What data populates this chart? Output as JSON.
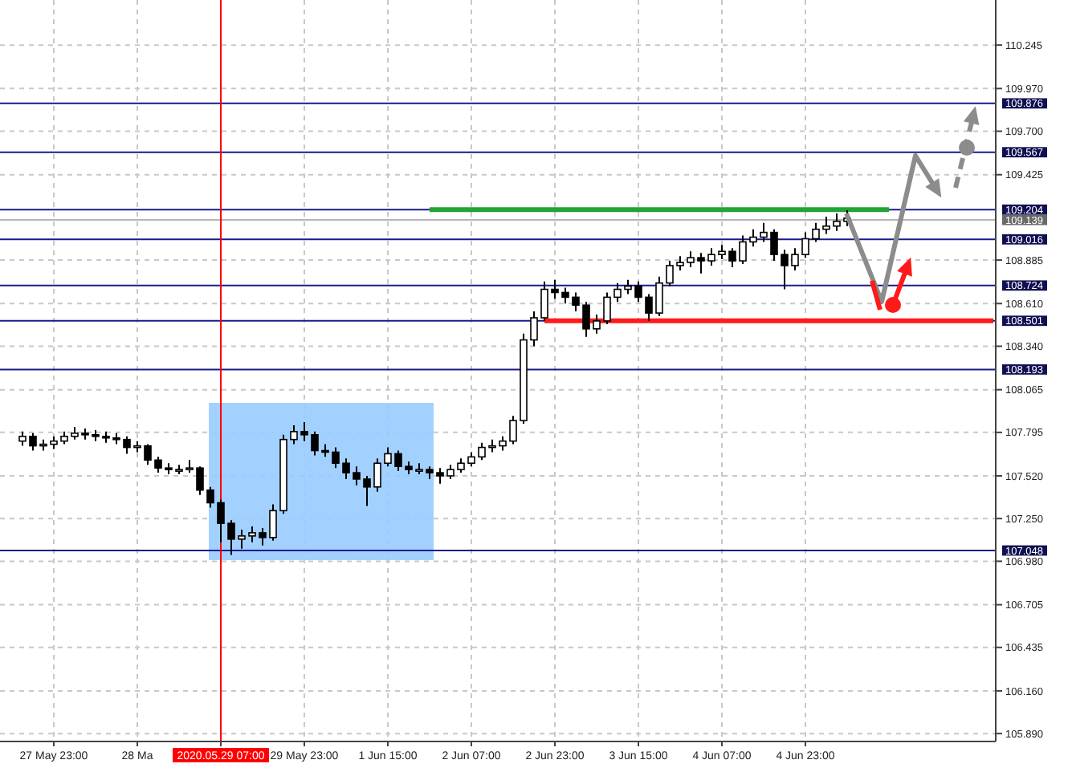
{
  "chart_data": {
    "type": "candlestick",
    "categories": [
      null,
      null,
      null,
      "27 May 23:00",
      null,
      null,
      null,
      null,
      null,
      null,
      null,
      "28 Ma",
      null,
      null,
      null,
      null,
      null,
      null,
      null,
      "2020.05.29 07:00",
      null,
      null,
      null,
      null,
      null,
      null,
      null,
      "29 May 23:00",
      null,
      null,
      null,
      null,
      null,
      null,
      null,
      "1 Jun 15:00",
      null,
      null,
      null,
      null,
      null,
      null,
      null,
      "2 Jun 07:00",
      null,
      null,
      null,
      null,
      null,
      null,
      null,
      "2 Jun 23:00",
      null,
      null,
      null,
      null,
      null,
      null,
      null,
      "3 Jun 15:00",
      null,
      null,
      null,
      null,
      null,
      null,
      null,
      "4 Jun 07:00",
      null,
      null,
      null,
      null,
      null,
      null,
      null,
      "4 Jun 23:00",
      null,
      null,
      null,
      null,
      null,
      null,
      null,
      null,
      null,
      null,
      null,
      null,
      null,
      null,
      null,
      null,
      null,
      null
    ],
    "ohlc": [
      [
        107.74,
        107.8,
        107.71,
        107.77
      ],
      [
        107.77,
        107.79,
        107.68,
        107.71
      ],
      [
        107.71,
        107.75,
        107.68,
        107.72
      ],
      [
        107.72,
        107.77,
        107.69,
        107.74
      ],
      [
        107.74,
        107.8,
        107.72,
        107.77
      ],
      [
        107.77,
        107.83,
        107.75,
        107.79
      ],
      [
        107.79,
        107.82,
        107.75,
        107.78
      ],
      [
        107.78,
        107.81,
        107.74,
        107.77
      ],
      [
        107.77,
        107.8,
        107.73,
        107.76
      ],
      [
        107.76,
        107.79,
        107.72,
        107.75
      ],
      [
        107.75,
        107.77,
        107.66,
        107.7
      ],
      [
        107.7,
        107.74,
        107.67,
        107.71
      ],
      [
        107.71,
        107.72,
        107.59,
        107.62
      ],
      [
        107.62,
        107.64,
        107.54,
        107.57
      ],
      [
        107.57,
        107.6,
        107.53,
        107.56
      ],
      [
        107.56,
        107.59,
        107.53,
        107.56
      ],
      [
        107.56,
        107.62,
        107.54,
        107.57
      ],
      [
        107.57,
        107.58,
        107.4,
        107.43
      ],
      [
        107.43,
        107.45,
        107.32,
        107.35
      ],
      [
        107.35,
        107.37,
        107.1,
        107.22
      ],
      [
        107.22,
        107.24,
        107.02,
        107.12
      ],
      [
        107.12,
        107.18,
        107.06,
        107.14
      ],
      [
        107.14,
        107.2,
        107.1,
        107.16
      ],
      [
        107.16,
        107.19,
        107.08,
        107.13
      ],
      [
        107.13,
        107.34,
        107.11,
        107.3
      ],
      [
        107.3,
        107.78,
        107.28,
        107.75
      ],
      [
        107.75,
        107.84,
        107.72,
        107.8
      ],
      [
        107.8,
        107.86,
        107.74,
        107.78
      ],
      [
        107.78,
        107.8,
        107.65,
        107.68
      ],
      [
        107.68,
        107.72,
        107.64,
        107.67
      ],
      [
        107.67,
        107.7,
        107.57,
        107.6
      ],
      [
        107.6,
        107.63,
        107.5,
        107.54
      ],
      [
        107.54,
        107.58,
        107.46,
        107.5
      ],
      [
        107.5,
        107.52,
        107.33,
        107.45
      ],
      [
        107.45,
        107.63,
        107.42,
        107.6
      ],
      [
        107.6,
        107.7,
        107.58,
        107.66
      ],
      [
        107.66,
        107.68,
        107.55,
        107.58
      ],
      [
        107.58,
        107.61,
        107.53,
        107.56
      ],
      [
        107.56,
        107.6,
        107.53,
        107.56
      ],
      [
        107.56,
        107.58,
        107.5,
        107.54
      ],
      [
        107.54,
        107.57,
        107.47,
        107.52
      ],
      [
        107.52,
        107.59,
        107.5,
        107.56
      ],
      [
        107.56,
        107.63,
        107.54,
        107.6
      ],
      [
        107.6,
        107.67,
        107.58,
        107.64
      ],
      [
        107.64,
        107.73,
        107.62,
        107.7
      ],
      [
        107.7,
        107.75,
        107.67,
        107.71
      ],
      [
        107.71,
        107.77,
        107.68,
        107.74
      ],
      [
        107.74,
        107.9,
        107.72,
        107.87
      ],
      [
        107.87,
        108.42,
        107.85,
        108.38
      ],
      [
        108.38,
        108.56,
        108.34,
        108.52
      ],
      [
        108.52,
        108.75,
        108.5,
        108.7
      ],
      [
        108.7,
        108.76,
        108.64,
        108.68
      ],
      [
        108.68,
        108.71,
        108.61,
        108.65
      ],
      [
        108.65,
        108.68,
        108.56,
        108.6
      ],
      [
        108.6,
        108.62,
        108.4,
        108.45
      ],
      [
        108.45,
        108.54,
        108.42,
        108.5
      ],
      [
        108.5,
        108.68,
        108.48,
        108.65
      ],
      [
        108.65,
        108.74,
        108.62,
        108.7
      ],
      [
        108.7,
        108.76,
        108.67,
        108.72
      ],
      [
        108.72,
        108.75,
        108.62,
        108.65
      ],
      [
        108.65,
        108.67,
        108.5,
        108.55
      ],
      [
        108.55,
        108.78,
        108.53,
        108.74
      ],
      [
        108.74,
        108.88,
        108.72,
        108.85
      ],
      [
        108.85,
        108.91,
        108.82,
        108.87
      ],
      [
        108.87,
        108.94,
        108.84,
        108.9
      ],
      [
        108.9,
        108.93,
        108.8,
        108.88
      ],
      [
        108.88,
        108.96,
        108.85,
        108.92
      ],
      [
        108.92,
        108.98,
        108.89,
        108.94
      ],
      [
        108.94,
        108.96,
        108.84,
        108.88
      ],
      [
        108.88,
        109.04,
        108.86,
        109.0
      ],
      [
        109.0,
        109.08,
        108.97,
        109.03
      ],
      [
        109.03,
        109.12,
        109.0,
        109.06
      ],
      [
        109.06,
        109.08,
        108.88,
        108.92
      ],
      [
        108.92,
        108.95,
        108.7,
        108.85
      ],
      [
        108.85,
        108.96,
        108.82,
        108.92
      ],
      [
        108.92,
        109.06,
        108.9,
        109.02
      ],
      [
        109.02,
        109.12,
        109.0,
        109.08
      ],
      [
        109.08,
        109.16,
        109.05,
        109.1
      ],
      [
        109.1,
        109.18,
        109.07,
        109.13
      ],
      [
        109.13,
        109.2,
        109.1,
        109.15
      ],
      null,
      null,
      null,
      null,
      null,
      null,
      null,
      null,
      null,
      null,
      null,
      null,
      null,
      null
    ],
    "series": [
      {
        "type": "line",
        "color": "#21a336",
        "values": [
          null,
          null,
          null,
          null,
          null,
          null,
          null,
          null,
          null,
          null,
          null,
          null,
          null,
          null,
          null,
          null,
          null,
          null,
          null,
          null,
          null,
          null,
          null,
          null,
          null,
          null,
          null,
          null,
          null,
          null,
          null,
          null,
          null,
          null,
          null,
          null,
          null,
          null,
          null,
          109.204,
          109.204,
          109.204,
          109.204,
          109.204,
          109.204,
          109.204,
          109.204,
          109.204,
          109.204,
          109.204,
          109.204,
          109.204,
          109.204,
          109.204,
          109.204,
          109.204,
          109.204,
          109.204,
          109.204,
          109.204,
          109.204,
          109.204,
          109.204,
          109.204,
          109.204,
          109.204,
          109.204,
          109.204,
          109.204,
          109.204,
          109.204,
          109.204,
          109.204,
          109.204,
          109.204,
          109.204,
          109.204,
          109.204,
          109.204,
          109.204,
          109.204,
          109.204,
          109.204,
          109.204,
          null,
          null,
          null,
          null,
          null,
          null,
          null,
          null,
          null,
          null
        ]
      },
      {
        "type": "line",
        "color": "#ff1a1a",
        "values": [
          null,
          null,
          null,
          null,
          null,
          null,
          null,
          null,
          null,
          null,
          null,
          null,
          null,
          null,
          null,
          null,
          null,
          null,
          null,
          null,
          null,
          null,
          null,
          null,
          null,
          null,
          null,
          null,
          null,
          null,
          null,
          null,
          null,
          null,
          null,
          null,
          null,
          null,
          null,
          null,
          null,
          null,
          null,
          null,
          null,
          null,
          null,
          null,
          null,
          null,
          108.501,
          108.501,
          108.501,
          108.501,
          108.501,
          108.501,
          108.501,
          108.501,
          108.501,
          108.501,
          108.501,
          108.501,
          108.501,
          108.501,
          108.501,
          108.501,
          108.501,
          108.501,
          108.501,
          108.501,
          108.501,
          108.501,
          108.501,
          108.501,
          108.501,
          108.501,
          108.501,
          108.501,
          108.501,
          108.501,
          108.501,
          108.501,
          108.501,
          108.501,
          108.501,
          108.501,
          108.501,
          108.501,
          108.501,
          108.501,
          108.501,
          108.501,
          108.501,
          108.501
        ]
      }
    ],
    "ylim": [
      105.84,
      110.53
    ],
    "yticks": [
      110.245,
      {
        "value": 109.97,
        "label": "109.970"
      },
      {
        "value": 109.7,
        "label": "109.700"
      },
      109.425,
      108.885,
      {
        "value": 108.61,
        "label": "108.610"
      },
      {
        "value": 108.34,
        "label": "108.340"
      },
      108.065,
      107.795,
      {
        "value": 107.52,
        "label": "107.520"
      },
      {
        "value": 107.25,
        "label": "107.250"
      },
      {
        "value": 106.98,
        "label": "106.980"
      },
      106.705,
      106.435,
      {
        "value": 106.16,
        "label": "106.160"
      },
      {
        "value": 105.89,
        "label": "105.890"
      }
    ],
    "ref_lines": [
      {
        "axis": "x",
        "value": "2020.05.29 07:00",
        "color": "#ff0000"
      },
      {
        "axis": "y",
        "value": 109.876,
        "label": "109.876",
        "color": "#1a1a8c"
      },
      {
        "axis": "y",
        "value": 109.567,
        "label": "109.567",
        "color": "#1a1a8c"
      },
      {
        "axis": "y",
        "value": 109.204,
        "label": "109.204",
        "color": "#1a1a8c"
      },
      {
        "axis": "y",
        "value": 109.139,
        "label": "109.139",
        "color": "#b4b4b4"
      },
      {
        "axis": "y",
        "value": 109.016,
        "label": "109.016",
        "color": "#1a1a8c"
      },
      {
        "axis": "y",
        "value": 108.724,
        "label": "108.724",
        "color": "#1a1a8c"
      },
      {
        "axis": "y",
        "value": 108.501,
        "label": "108.501",
        "color": "#1a1a8c"
      },
      {
        "axis": "y",
        "value": 108.193,
        "label": "108.193",
        "color": "#1a1a8c"
      },
      {
        "axis": "y",
        "value": 107.048,
        "label": "107.048",
        "color": "#1a1a8c"
      }
    ],
    "grid": true
  }
}
